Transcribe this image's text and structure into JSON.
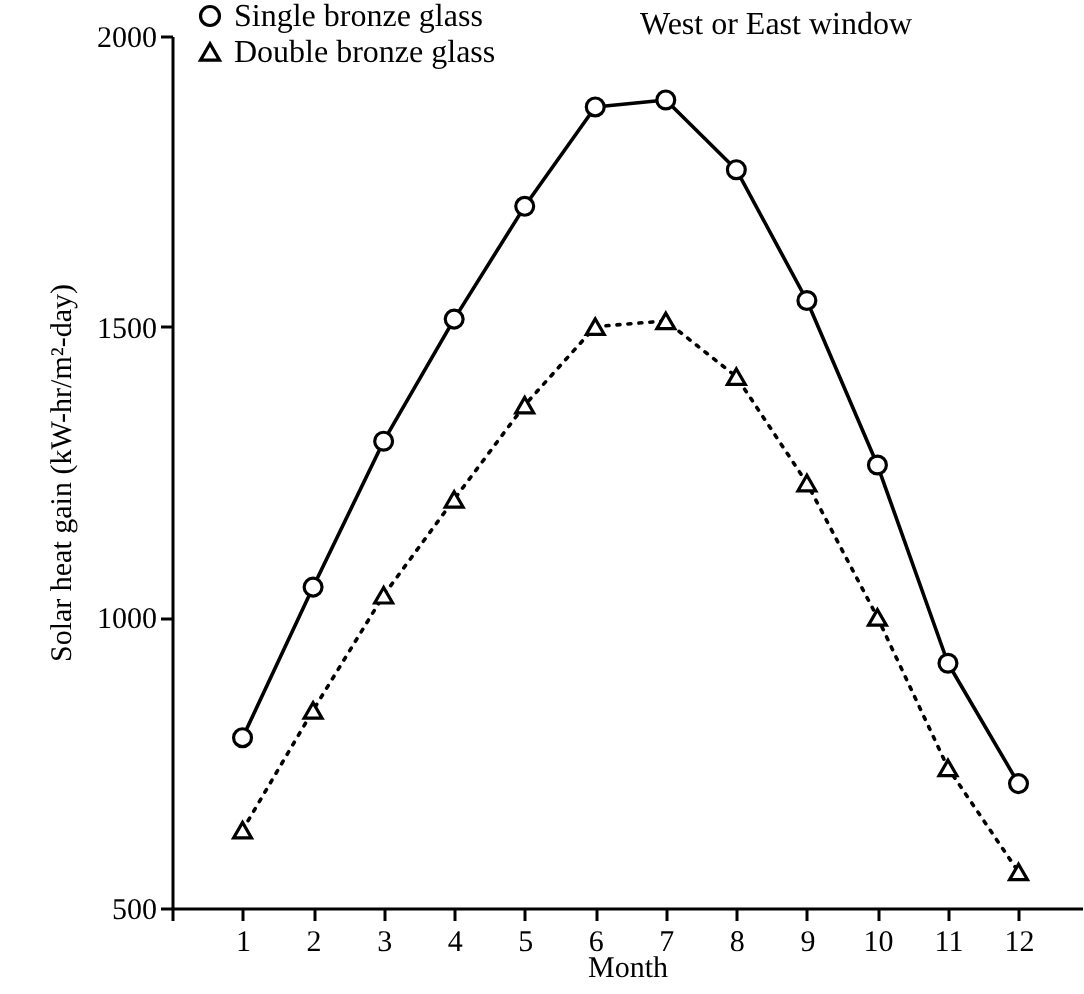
{
  "chart_data": {
    "type": "line",
    "xlabel": "Month",
    "ylabel": "Solar heat gain (kW-hr/m²-day)",
    "annotations": [
      "West or East window"
    ],
    "x": [
      1,
      2,
      3,
      4,
      5,
      6,
      7,
      8,
      9,
      10,
      11,
      12
    ],
    "series": [
      {
        "name": "Single bronze glass",
        "color": "#000000",
        "line_style": "solid",
        "marker": "circle",
        "values": [
          793,
          1052,
          1303,
          1513,
          1707,
          1878,
          1890,
          1770,
          1545,
          1262,
          921,
          714
        ]
      },
      {
        "name": "Double bronze glass",
        "color": "#000000",
        "line_style": "dotted",
        "marker": "triangle",
        "values": [
          634,
          840,
          1038,
          1203,
          1365,
          1500,
          1510,
          1414,
          1231,
          1000,
          741,
          562
        ]
      }
    ],
    "xlim": [
      0,
      12.9
    ],
    "xticks": [
      {
        "value": 0,
        "label": null
      },
      1,
      2,
      3,
      4,
      5,
      6,
      7,
      8,
      9,
      10,
      11,
      12
    ],
    "ylim": [
      500,
      2000
    ],
    "yticks": [
      500,
      1000,
      1500,
      2000
    ],
    "grid": false,
    "legend": "top left"
  }
}
